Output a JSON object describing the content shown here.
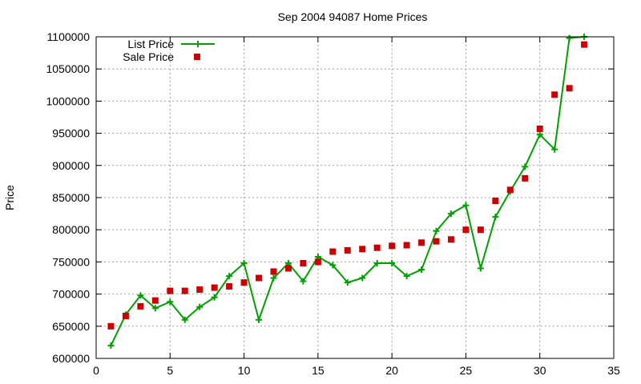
{
  "chart_data": {
    "type": "line",
    "title": "Sep 2004 94087 Home Prices",
    "xlabel": "",
    "ylabel": "Price",
    "xlim": [
      0,
      35
    ],
    "ylim": [
      600000,
      1100000
    ],
    "xticks": [
      0,
      5,
      10,
      15,
      20,
      25,
      30,
      35
    ],
    "yticks": [
      600000,
      650000,
      700000,
      750000,
      800000,
      850000,
      900000,
      950000,
      1000000,
      1050000,
      1100000
    ],
    "grid": true,
    "legend_position": "top-left",
    "series": [
      {
        "name": "List Price",
        "style": "line-plus",
        "color": "#00a000",
        "x": [
          1,
          2,
          3,
          4,
          5,
          6,
          7,
          8,
          9,
          10,
          11,
          12,
          13,
          14,
          15,
          16,
          17,
          18,
          19,
          20,
          21,
          22,
          23,
          24,
          25,
          26,
          27,
          28,
          29,
          30,
          31,
          32,
          33
        ],
        "y": [
          620000,
          668000,
          698000,
          678000,
          688000,
          660000,
          680000,
          695000,
          728000,
          748000,
          660000,
          725000,
          748000,
          720000,
          758000,
          745000,
          718000,
          725000,
          748000,
          748000,
          728000,
          738000,
          798000,
          825000,
          838000,
          740000,
          820000,
          860000,
          898000,
          948000,
          925000,
          1098000,
          1100000
        ]
      },
      {
        "name": "Sale Price",
        "style": "square",
        "color": "#cc0000",
        "x": [
          1,
          2,
          3,
          4,
          5,
          6,
          7,
          8,
          9,
          10,
          11,
          12,
          13,
          14,
          15,
          16,
          17,
          18,
          19,
          20,
          21,
          22,
          23,
          24,
          25,
          26,
          27,
          28,
          29,
          30,
          31,
          32,
          33
        ],
        "y": [
          650000,
          666000,
          681000,
          690000,
          705000,
          705000,
          707000,
          710000,
          712000,
          718000,
          725000,
          735000,
          740000,
          748000,
          750000,
          766000,
          768000,
          770000,
          772000,
          775000,
          776000,
          780000,
          782000,
          785000,
          800000,
          800000,
          845000,
          862000,
          880000,
          957000,
          1010000,
          1020000,
          1088000
        ]
      }
    ]
  }
}
